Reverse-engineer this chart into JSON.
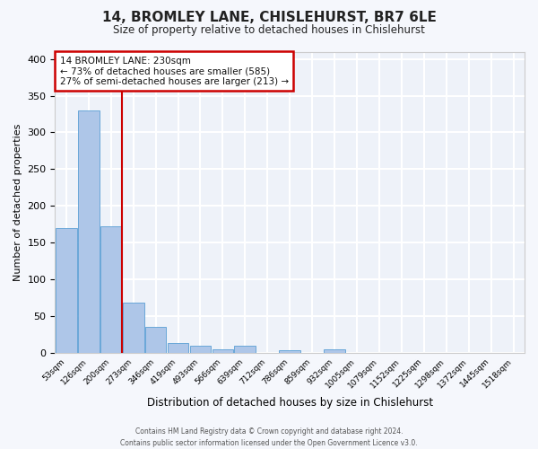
{
  "title": "14, BROMLEY LANE, CHISLEHURST, BR7 6LE",
  "subtitle": "Size of property relative to detached houses in Chislehurst",
  "xlabel": "Distribution of detached houses by size in Chislehurst",
  "ylabel": "Number of detached properties",
  "bin_labels": [
    "53sqm",
    "126sqm",
    "200sqm",
    "273sqm",
    "346sqm",
    "419sqm",
    "493sqm",
    "566sqm",
    "639sqm",
    "712sqm",
    "786sqm",
    "859sqm",
    "932sqm",
    "1005sqm",
    "1079sqm",
    "1152sqm",
    "1225sqm",
    "1298sqm",
    "1372sqm",
    "1445sqm",
    "1518sqm"
  ],
  "bar_heights": [
    170,
    330,
    172,
    68,
    35,
    13,
    9,
    5,
    9,
    0,
    3,
    0,
    4,
    0,
    0,
    0,
    0,
    0,
    0,
    0,
    0
  ],
  "bar_color": "#aec6e8",
  "bar_edge_color": "#5a9fd4",
  "property_line_x": 2.5,
  "property_line_color": "#cc0000",
  "annotation_title": "14 BROMLEY LANE: 230sqm",
  "annotation_line1": "← 73% of detached houses are smaller (585)",
  "annotation_line2": "27% of semi-detached houses are larger (213) →",
  "ylim": [
    0,
    410
  ],
  "yticks": [
    0,
    50,
    100,
    150,
    200,
    250,
    300,
    350,
    400
  ],
  "background_color": "#eef2f9",
  "grid_color": "#ffffff",
  "footer_line1": "Contains HM Land Registry data © Crown copyright and database right 2024.",
  "footer_line2": "Contains public sector information licensed under the Open Government Licence v3.0."
}
